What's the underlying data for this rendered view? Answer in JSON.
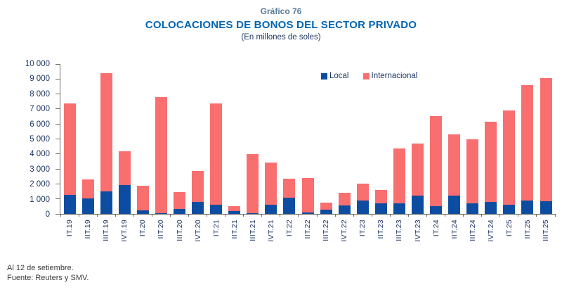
{
  "header": {
    "graph_number": "Gráfico 76",
    "title": "COLOCACIONES DE BONOS DEL SECTOR PRIVADO",
    "subtitle": "(En millones de soles)"
  },
  "chart_data": {
    "type": "bar",
    "stacked": true,
    "title": "COLOCACIONES DE BONOS DEL SECTOR PRIVADO",
    "subtitle": "(En millones de soles)",
    "categories": [
      "IT.19",
      "IIT.19",
      "IIIT.19",
      "IVT.19",
      "IT.20",
      "IIT.20",
      "IIIT.20",
      "IVT.20",
      "IT.21",
      "IIT.21",
      "IIIT.21",
      "IVT.21",
      "IT.22",
      "IIT.22",
      "IIIT.22",
      "IVT.22",
      "IT.23",
      "IIT.23",
      "IIIT.23",
      "IVT.23",
      "IT.24",
      "IIT.24",
      "IIIT.24",
      "IVT.24",
      "IT.25",
      "IIT.25",
      "IIIT.25"
    ],
    "series": [
      {
        "name": "Local",
        "color": "#0D4DA1",
        "values": [
          1250,
          1050,
          1480,
          1920,
          250,
          30,
          330,
          780,
          620,
          190,
          50,
          620,
          1090,
          80,
          270,
          550,
          900,
          700,
          700,
          1200,
          500,
          1200,
          700,
          780,
          620,
          900,
          860
        ]
      },
      {
        "name": "Internacional",
        "color": "#F96F6F",
        "values": [
          6100,
          1250,
          7920,
          2280,
          1650,
          7750,
          1120,
          2070,
          6730,
          310,
          3950,
          2830,
          1260,
          2320,
          480,
          850,
          1100,
          900,
          3650,
          3500,
          6050,
          4100,
          4300,
          5370,
          6280,
          7700,
          8190
        ]
      }
    ],
    "totals": [
      7350,
      2300,
      9400,
      4200,
      1900,
      7780,
      1450,
      2850,
      7350,
      500,
      4000,
      3450,
      2350,
      2400,
      750,
      1400,
      2000,
      1600,
      4350,
      4700,
      6550,
      5300,
      5000,
      6150,
      6900,
      8600,
      9050
    ],
    "ylim": [
      0,
      10000
    ],
    "y_tick_step": 1000,
    "y_tick_labels": [
      "0",
      "1 000",
      "2 000",
      "3 000",
      "4 000",
      "5 000",
      "6 000",
      "7 000",
      "8 000",
      "9 000",
      "10 000"
    ],
    "grid": false,
    "legend_position": "top-inside"
  },
  "footer": {
    "note_line1": "Al 12 de setiembre.",
    "note_line2": "Fuente: Reuters y SMV."
  },
  "colors": {
    "title_blue": "#0065B3",
    "graph_number_gray": "#5C7C99",
    "axis_text": "#1F3864",
    "axis_line": "#6E6E6E",
    "local": "#0D4DA1",
    "internacional": "#F96F6F",
    "footer_text": "#3C3C3C"
  }
}
